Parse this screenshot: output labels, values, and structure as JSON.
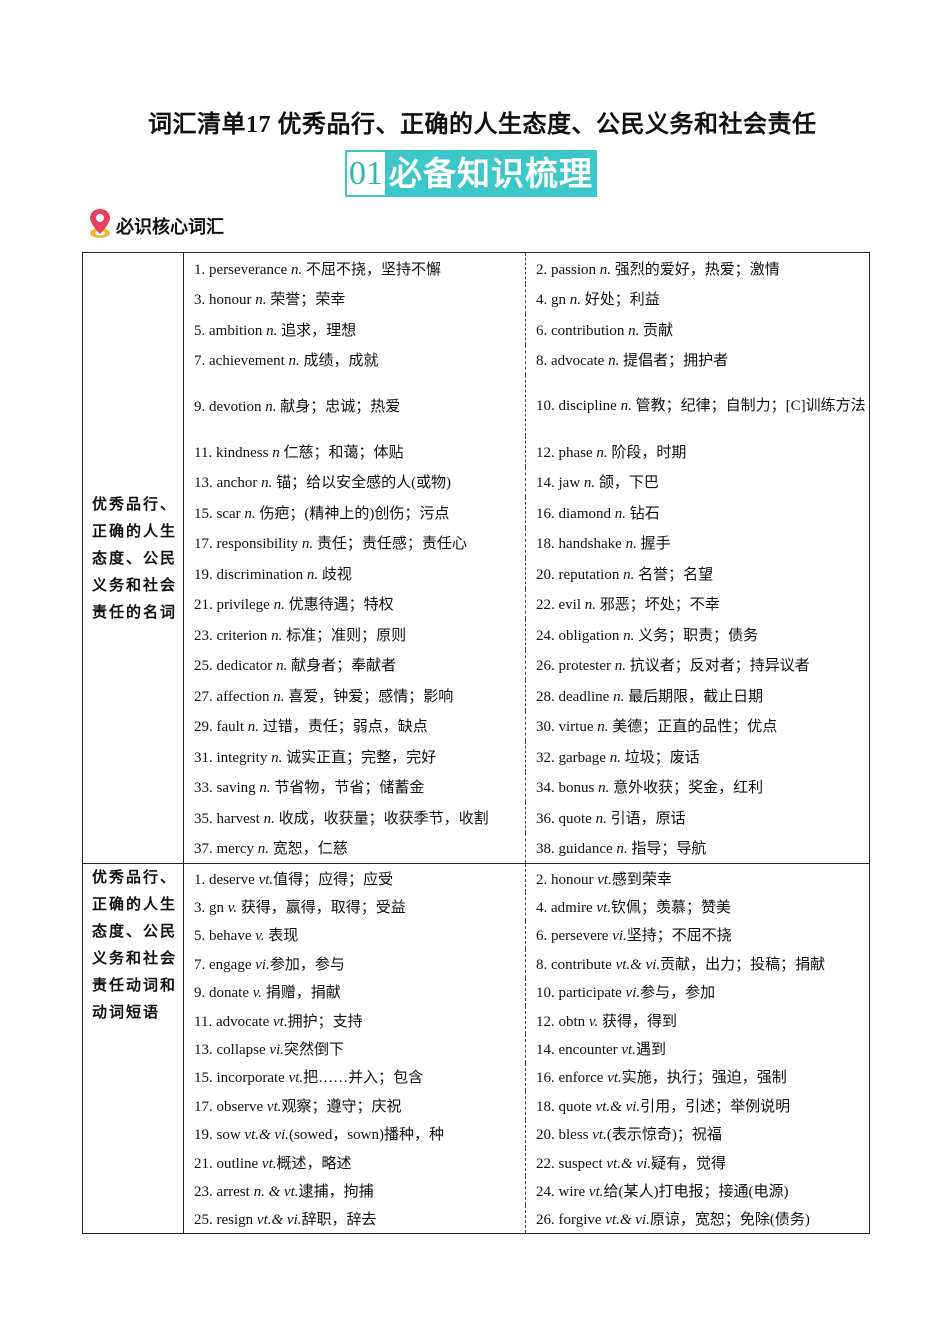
{
  "title": "词汇清单17  优秀品行、正确的人生态度、公民义务和社会责任",
  "banner": {
    "number": "01",
    "text": "必备知识梳理"
  },
  "subheading": {
    "icon": "map-pin-icon",
    "text": "必识核心词汇"
  },
  "colors": {
    "banner": "#3cc8c8",
    "pin": "#e8405a"
  },
  "sections": [
    {
      "label": "优秀品行、正确的人生态度、公民义务和社会责任的名词",
      "rows": [
        [
          {
            "head": "1. perseverance ",
            "pos": "n.",
            "def": " 不屈不挠，坚持不懈"
          },
          {
            "head": "2. passion ",
            "pos": "n.",
            "def": " 强烈的爱好，热爱；激情"
          }
        ],
        [
          {
            "head": "3. honour ",
            "pos": "n.",
            "def": " 荣誉；荣幸"
          },
          {
            "head": "4. gn  ",
            "pos": "n.",
            "def": " 好处；利益"
          }
        ],
        [
          {
            "head": "5. ambition ",
            "pos": "n.",
            "def": " 追求，理想"
          },
          {
            "head": "6. contribution ",
            "pos": "n.",
            "def": " 贡献"
          }
        ],
        [
          {
            "head": "7. achievement ",
            "pos": "n.",
            "def": " 成绩，成就"
          },
          {
            "head": "8. advocate ",
            "pos": "n.",
            "def": " 提倡者；拥护者"
          }
        ],
        [
          {
            "head": "9. devotion ",
            "pos": "n.",
            "def": " 献身；忠诚；热爱"
          },
          {
            "head": "10. discipline ",
            "pos": "n.",
            "def": " 管教；纪律；自制力；[C]训练方法"
          }
        ],
        [
          {
            "head": "11. kindness ",
            "pos": "n",
            "def": " 仁慈；和蔼；体贴"
          },
          {
            "head": "12. phase ",
            "pos": "n.",
            "def": " 阶段，时期"
          }
        ],
        [
          {
            "head": "13. anchor ",
            "pos": "n.",
            "def": " 锚；给以安全感的人(或物)"
          },
          {
            "head": "14. jaw ",
            "pos": "n.",
            "def": " 颌，下巴"
          }
        ],
        [
          {
            "head": "15. scar ",
            "pos": "n.",
            "def": " 伤疤；(精神上的)创伤；污点"
          },
          {
            "head": "16. diamond ",
            "pos": "n.",
            "def": " 钻石"
          }
        ],
        [
          {
            "head": "17. responsibility ",
            "pos": "n.",
            "def": " 责任；责任感；责任心"
          },
          {
            "head": "18. handshake ",
            "pos": "n.",
            "def": " 握手"
          }
        ],
        [
          {
            "head": "19. discrimination ",
            "pos": "n.",
            "def": " 歧视"
          },
          {
            "head": "20. reputation ",
            "pos": "n.",
            "def": " 名誉；名望"
          }
        ],
        [
          {
            "head": "21. privilege ",
            "pos": "n.",
            "def": " 优惠待遇；特权"
          },
          {
            "head": "22. evil ",
            "pos": "n.",
            "def": " 邪恶；坏处；不幸"
          }
        ],
        [
          {
            "head": "23. criterion ",
            "pos": "n.",
            "def": " 标准；准则；原则"
          },
          {
            "head": "24. obligation ",
            "pos": "n.",
            "def": " 义务；职责；债务"
          }
        ],
        [
          {
            "head": "25. dedicator ",
            "pos": "n.",
            "def": " 献身者；奉献者"
          },
          {
            "head": "26. protester ",
            "pos": "n.",
            "def": " 抗议者；反对者；持异议者"
          }
        ],
        [
          {
            "head": "27. affection ",
            "pos": "n.",
            "def": " 喜爱，钟爱；感情；影响"
          },
          {
            "head": "28. deadline ",
            "pos": "n.",
            "def": " 最后期限，截止日期"
          }
        ],
        [
          {
            "head": "29. fault ",
            "pos": "n.",
            "def": " 过错，责任；弱点，缺点"
          },
          {
            "head": "30. virtue ",
            "pos": "n.",
            "def": " 美德；正直的品性；优点"
          }
        ],
        [
          {
            "head": "31. integrity ",
            "pos": "n.",
            "def": " 诚实正直；完整，完好"
          },
          {
            "head": "32. garbage ",
            "pos": "n.",
            "def": " 垃圾；废话"
          }
        ],
        [
          {
            "head": "33. saving ",
            "pos": "n.",
            "def": " 节省物，节省；储蓄金"
          },
          {
            "head": "34. bonus ",
            "pos": "n.",
            "def": " 意外收获；奖金，红利"
          }
        ],
        [
          {
            "head": "35. harvest ",
            "pos": "n.",
            "def": " 收成，收获量；收获季节，收割"
          },
          {
            "head": "36. quote ",
            "pos": "n.",
            "def": " 引语，原话"
          }
        ],
        [
          {
            "head": "37. mercy ",
            "pos": "n.",
            "def": " 宽恕，仁慈"
          },
          {
            "head": "38. guidance ",
            "pos": "n.",
            "def": " 指导；导航"
          }
        ]
      ]
    },
    {
      "label": "优秀品行、正确的人生态度、公民义务和社会责任动词和动词短语",
      "rows": [
        [
          {
            "head": "1. deserve ",
            "pos": "vt.",
            "def": "值得；应得；应受"
          },
          {
            "head": "2. honour  ",
            "pos": "vt.",
            "def": "感到荣幸"
          }
        ],
        [
          {
            "head": "3. gn ",
            "pos": "v.",
            "def": " 获得，赢得，取得；受益"
          },
          {
            "head": "4. admire ",
            "pos": "vt.",
            "def": "钦佩；羡慕；赞美"
          }
        ],
        [
          {
            "head": "5. behave ",
            "pos": "v.",
            "def": " 表现"
          },
          {
            "head": "6. persevere ",
            "pos": "vi.",
            "def": "坚持；不屈不挠"
          }
        ],
        [
          {
            "head": "7. engage ",
            "pos": "vi.",
            "def": "参加，参与"
          },
          {
            "head": "8. contribute ",
            "pos": "vt.& vi.",
            "def": "贡献，出力；投稿；捐献"
          }
        ],
        [
          {
            "head": "9. donate ",
            "pos": "v.",
            "def": " 捐赠，捐献"
          },
          {
            "head": "10. participate ",
            "pos": "vi.",
            "def": "参与，参加"
          }
        ],
        [
          {
            "head": "11. advocate ",
            "pos": "vt.",
            "def": "拥护；支持"
          },
          {
            "head": "12. obtn ",
            "pos": "v.",
            "def": " 获得，得到"
          }
        ],
        [
          {
            "head": "13. collapse ",
            "pos": "vi.",
            "def": "突然倒下"
          },
          {
            "head": "14. encounter ",
            "pos": "vt.",
            "def": "遇到"
          }
        ],
        [
          {
            "head": "15. incorporate ",
            "pos": "vt.",
            "def": "把……并入；包含"
          },
          {
            "head": "16. enforce ",
            "pos": "vt.",
            "def": "实施，执行；强迫，强制"
          }
        ],
        [
          {
            "head": "17. observe ",
            "pos": "vt.",
            "def": "观察；遵守；庆祝"
          },
          {
            "head": "18. quote ",
            "pos": "vt.& vi.",
            "def": "引用，引述；举例说明"
          }
        ],
        [
          {
            "head": "19. sow ",
            "pos": "vt.& vi.",
            "def": "(sowed，sown)播种，种"
          },
          {
            "head": "20. bless ",
            "pos": "vt.",
            "def": "(表示惊奇)；祝福"
          }
        ],
        [
          {
            "head": "21. outline ",
            "pos": "vt.",
            "def": "概述，略述"
          },
          {
            "head": "22. suspect ",
            "pos": "vt.& vi.",
            "def": "疑有，觉得"
          }
        ],
        [
          {
            "head": "23. arrest ",
            "pos": "n. & vt.",
            "def": "逮捕，拘捕"
          },
          {
            "head": "24. wire ",
            "pos": "vt.",
            "def": "给(某人)打电报；接通(电源)"
          }
        ],
        [
          {
            "head": "25. resign ",
            "pos": "vt.& vi.",
            "def": "辞职，辞去"
          },
          {
            "head": "26. forgive ",
            "pos": "vt.& vi.",
            "def": "原谅，宽恕；免除(债务)"
          }
        ]
      ]
    }
  ]
}
